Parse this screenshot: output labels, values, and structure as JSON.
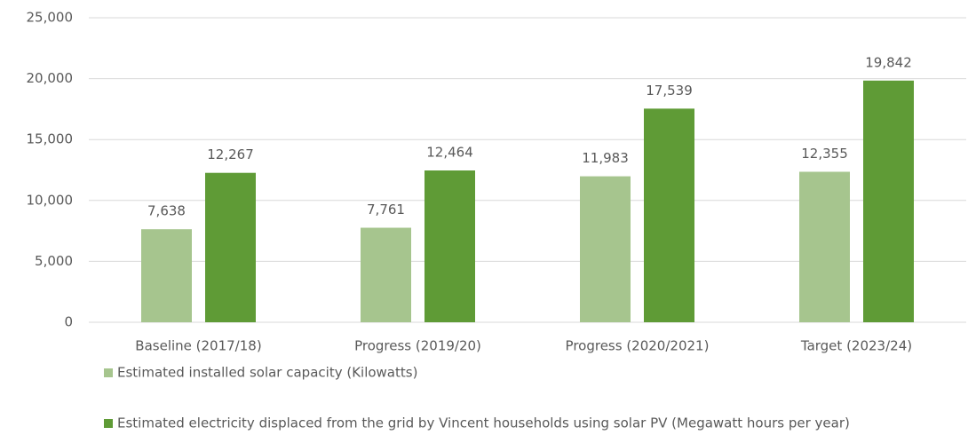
{
  "chart_data": {
    "type": "bar",
    "categories": [
      "Baseline (2017/18)",
      "Progress (2019/20)",
      "Progress (2020/2021)",
      "Target (2023/24)"
    ],
    "series": [
      {
        "name": "Estimated installed solar capacity (Kilowatts)",
        "color": "#a6c58e",
        "values": [
          7638,
          7761,
          11983,
          12355
        ],
        "value_labels": [
          "7,638",
          "7,761",
          "11,983",
          "12,355"
        ]
      },
      {
        "name": "Estimated electricity displaced from the grid by Vincent households using solar PV (Megawatt hours per year)",
        "color": "#5f9b36",
        "values": [
          12267,
          12464,
          17539,
          19842
        ],
        "value_labels": [
          "12,267",
          "12,464",
          "17,539",
          "19,842"
        ]
      }
    ],
    "ylim": [
      0,
      25000
    ],
    "yticks": [
      0,
      {
        "value": 5000,
        "label": "5,000"
      },
      {
        "value": 10000,
        "label": "10,000"
      },
      {
        "value": 15000,
        "label": "15,000"
      },
      {
        "value": 20000,
        "label": "20,000"
      },
      {
        "value": 25000,
        "label": "25,000"
      }
    ],
    "grid": true,
    "legend": "bottom"
  }
}
